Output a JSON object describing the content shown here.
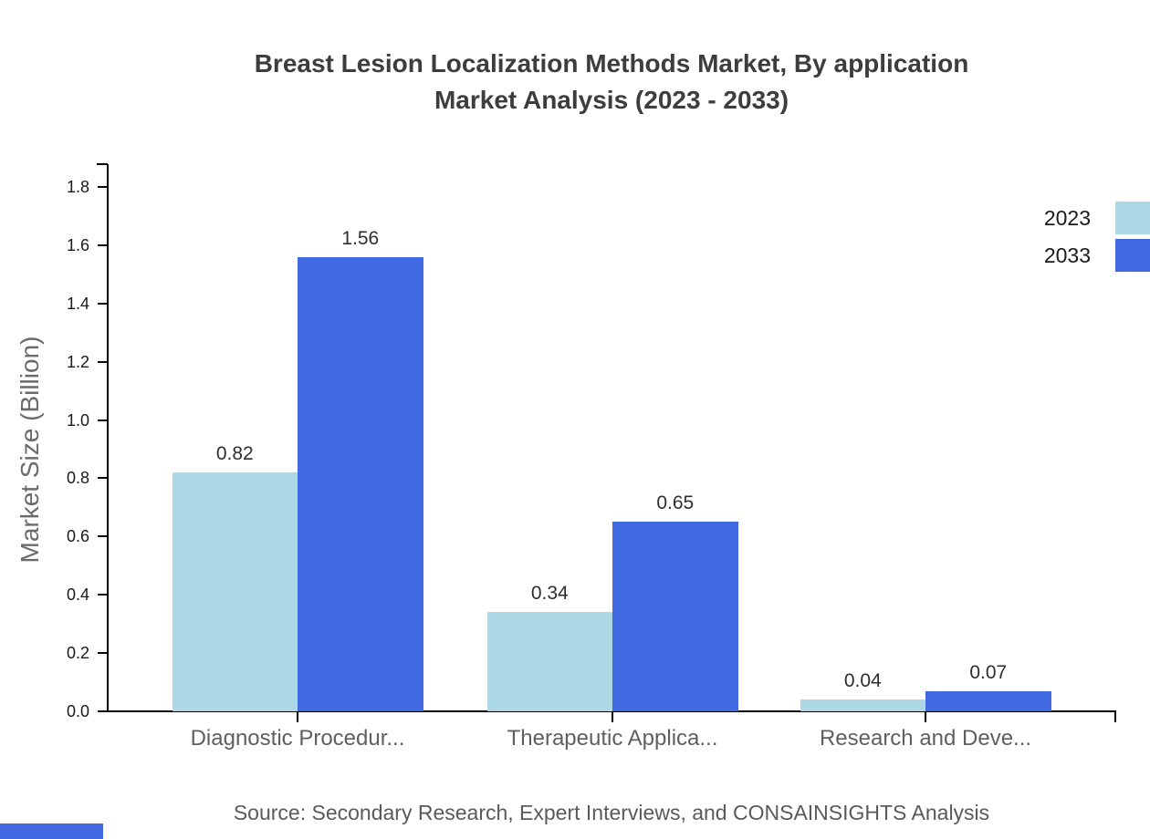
{
  "title": {
    "line1": "Breast Lesion Localization Methods Market, By application",
    "line2": "Market Analysis (2023 - 2033)"
  },
  "source": "Source: Secondary Research, Expert Interviews, and CONSAINSIGHTS Analysis",
  "legend": {
    "items": [
      {
        "label": "2023",
        "color": "#ADD8E6"
      },
      {
        "label": "2033",
        "color": "#4169E1"
      }
    ]
  },
  "accent_colors": {
    "series_2023": "#ADD8E6",
    "series_2033": "#4169E1",
    "axis": "#000000",
    "corner_bar": "#4169E1"
  },
  "chart_data": {
    "type": "bar",
    "title": "Breast Lesion Localization Methods Market, By application Market Analysis (2023 - 2033)",
    "categories": [
      "Diagnostic Procedur...",
      "Therapeutic Applica...",
      "Research and Deve..."
    ],
    "series": [
      {
        "name": "2023",
        "color": "#ADD8E6",
        "values": [
          0.82,
          0.34,
          0.04
        ],
        "labels": [
          "0.82",
          "0.34",
          "0.04"
        ]
      },
      {
        "name": "2033",
        "color": "#4169E1",
        "values": [
          1.56,
          0.65,
          0.07
        ],
        "labels": [
          "1.56",
          "0.65",
          "0.07"
        ]
      }
    ],
    "xlabel": "",
    "ylabel": "Market Size (Billion)",
    "ylim": [
      0,
      1.8
    ],
    "ytick_step": 0.2,
    "ytick_labels": [
      "0.0",
      "0.2",
      "0.4",
      "0.6",
      "0.8",
      "1.0",
      "1.2",
      "1.4",
      "1.6",
      "1.8"
    ],
    "grid": false,
    "legend_position": "top-right"
  }
}
